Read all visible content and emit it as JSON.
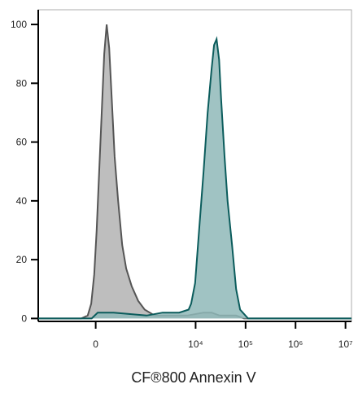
{
  "chart_data": {
    "type": "area",
    "xlabel": "CF®800 Annexin V",
    "series": [
      {
        "color": "#b3b3b3",
        "line_color": "#555555",
        "x": [
          0.85,
          1.71,
          1.84,
          1.91,
          1.97,
          2.02,
          2.07,
          2.12,
          2.17,
          2.22,
          2.27,
          2.32,
          2.38,
          2.45,
          2.53,
          2.61,
          2.72,
          2.85,
          2.98,
          3.18,
          3.34,
          3.83,
          4.16,
          4.32,
          4.48,
          4.81,
          4.97,
          7.12
        ],
        "values": [
          0,
          0,
          1,
          5,
          15,
          30,
          50,
          70,
          90,
          100,
          92,
          75,
          55,
          40,
          25,
          17,
          11,
          6,
          3,
          1,
          1,
          1,
          2,
          2,
          1,
          1,
          0,
          0
        ]
      },
      {
        "color": "#8fb9b8",
        "line_color": "#0b5c5c",
        "x": [
          0.85,
          1.92,
          2.04,
          2.36,
          3.02,
          3.34,
          3.67,
          3.86,
          3.91,
          3.99,
          4.07,
          4.16,
          4.24,
          4.32,
          4.37,
          4.42,
          4.47,
          4.51,
          4.58,
          4.64,
          4.73,
          4.81,
          4.89,
          5.05,
          7.12
        ],
        "values": [
          0,
          0,
          2,
          2,
          1,
          2,
          2,
          3,
          5,
          12,
          30,
          50,
          70,
          85,
          93,
          95,
          88,
          75,
          55,
          40,
          25,
          10,
          3,
          0,
          0
        ]
      }
    ],
    "xlim": [
      0.85,
      7.12
    ],
    "xticks": [
      {
        "value": 2,
        "label": "0"
      },
      {
        "value": 4,
        "label": "10⁴"
      },
      {
        "value": 5,
        "label": "10⁵"
      },
      {
        "value": 6,
        "label": "10⁶"
      },
      {
        "value": 7,
        "label": "10⁷"
      }
    ],
    "ylim": [
      -1,
      105
    ],
    "yticks": [
      0,
      20,
      40,
      60,
      80,
      100
    ]
  }
}
